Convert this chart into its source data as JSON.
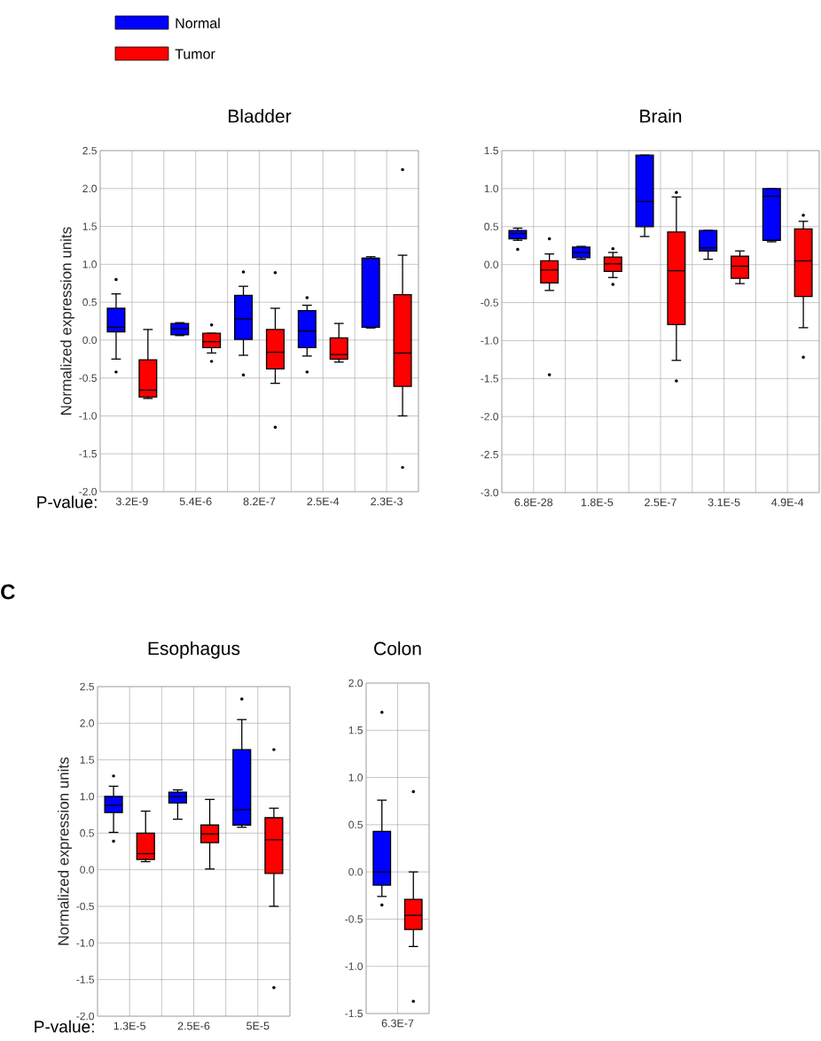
{
  "chart_data": [
    {
      "type": "box",
      "title": "Bladder",
      "ylabel": "Normalized expression units",
      "xlabel": "P-value:",
      "categories": [
        "3.2E-9",
        "5.4E-6",
        "8.2E-7",
        "2.5E-4",
        "2.3E-3"
      ],
      "ylim": [
        -2,
        2.5
      ],
      "yticks": [
        {
          "value": -2,
          "label": "-2.0"
        },
        {
          "value": -1.5,
          "label": "-1.5"
        },
        {
          "value": -1,
          "label": "-1.0"
        },
        {
          "value": -0.5,
          "label": "-0.5"
        },
        {
          "value": 0,
          "label": "0.0"
        },
        {
          "value": 0.5,
          "label": "0.5"
        },
        {
          "value": 1,
          "label": "1.0"
        },
        {
          "value": 1.5,
          "label": "1.5"
        },
        {
          "value": 2,
          "label": "2.0"
        },
        {
          "value": 2.5,
          "label": "2.5"
        }
      ],
      "grid": true,
      "legend": "top left",
      "series": [
        {
          "name": "Normal",
          "color": "#0000ff",
          "boxes": [
            {
              "low": -0.25,
              "q1": 0.11,
              "median": 0.17,
              "q3": 0.42,
              "high": 0.61,
              "outliers": [
                0.8,
                -0.42
              ]
            },
            {
              "low": 0.06,
              "q1": 0.07,
              "median": 0.15,
              "q3": 0.22,
              "high": 0.23
            },
            {
              "low": -0.2,
              "q1": 0.01,
              "median": 0.28,
              "q3": 0.59,
              "high": 0.71,
              "outliers": [
                0.9,
                -0.46
              ]
            },
            {
              "low": -0.21,
              "q1": -0.1,
              "median": 0.12,
              "q3": 0.39,
              "high": 0.46,
              "outliers": [
                0.56,
                -0.42
              ]
            },
            {
              "low": 0.16,
              "q1": 0.17,
              "median": 1.08,
              "q3": 1.08,
              "high": 1.1
            }
          ]
        },
        {
          "name": "Tumor",
          "color": "#ff0000",
          "boxes": [
            {
              "low": -0.77,
              "q1": -0.75,
              "median": -0.66,
              "q3": -0.26,
              "high": 0.14
            },
            {
              "low": -0.17,
              "q1": -0.1,
              "median": -0.02,
              "q3": 0.09,
              "high": 0.09,
              "outliers": [
                0.2,
                -0.28
              ]
            },
            {
              "low": -0.57,
              "q1": -0.38,
              "median": -0.16,
              "q3": 0.14,
              "high": 0.42,
              "outliers": [
                0.89,
                -1.15
              ]
            },
            {
              "low": -0.29,
              "q1": -0.25,
              "median": -0.19,
              "q3": 0.03,
              "high": 0.22
            },
            {
              "low": -1.0,
              "q1": -0.61,
              "median": -0.17,
              "q3": 0.6,
              "high": 1.12,
              "outliers": [
                2.25,
                -1.68
              ]
            }
          ]
        }
      ]
    },
    {
      "type": "box",
      "title": "Brain",
      "categories": [
        "6.8E-28",
        "1.8E-5",
        "2.5E-7",
        "3.1E-5",
        "4.9E-4"
      ],
      "ylim": [
        -3,
        1.5
      ],
      "yticks": [
        {
          "value": -3,
          "label": "-3.0"
        },
        {
          "value": -2.5,
          "label": "-2.5"
        },
        {
          "value": -2,
          "label": "-2.0"
        },
        {
          "value": -1.5,
          "label": "-1.5"
        },
        {
          "value": -1,
          "label": "-1.0"
        },
        {
          "value": -0.5,
          "label": "-0.5"
        },
        {
          "value": 0,
          "label": "0.0"
        },
        {
          "value": 0.5,
          "label": "0.5"
        },
        {
          "value": 1,
          "label": "1.0"
        },
        {
          "value": 1.5,
          "label": "1.5"
        }
      ],
      "grid": true,
      "series": [
        {
          "color": "#0000ff",
          "boxes": [
            {
              "low": 0.32,
              "q1": 0.34,
              "median": 0.41,
              "q3": 0.45,
              "high": 0.48,
              "outliers": [
                0.2
              ]
            },
            {
              "low": 0.07,
              "q1": 0.09,
              "median": 0.16,
              "q3": 0.23,
              "high": 0.24
            },
            {
              "low": 0.37,
              "q1": 0.5,
              "median": 0.83,
              "q3": 1.44,
              "high": 1.44
            },
            {
              "low": 0.07,
              "q1": 0.18,
              "median": 0.22,
              "q3": 0.45,
              "high": 0.45
            },
            {
              "low": 0.3,
              "q1": 0.32,
              "median": 0.9,
              "q3": 1.0,
              "high": 1.0
            }
          ]
        },
        {
          "color": "#ff0000",
          "boxes": [
            {
              "low": -0.34,
              "q1": -0.24,
              "median": -0.07,
              "q3": 0.05,
              "high": 0.14,
              "outliers": [
                0.34,
                -1.45
              ]
            },
            {
              "low": -0.17,
              "q1": -0.09,
              "median": 0.01,
              "q3": 0.1,
              "high": 0.16,
              "outliers": [
                0.21,
                -0.26
              ]
            },
            {
              "low": -1.26,
              "q1": -0.79,
              "median": -0.08,
              "q3": 0.43,
              "high": 0.89,
              "outliers": [
                0.95,
                -1.53
              ]
            },
            {
              "low": -0.25,
              "q1": -0.18,
              "median": -0.02,
              "q3": 0.11,
              "high": 0.18
            },
            {
              "low": -0.83,
              "q1": -0.42,
              "median": 0.05,
              "q3": 0.47,
              "high": 0.57,
              "outliers": [
                0.65,
                -1.22
              ]
            }
          ]
        }
      ]
    },
    {
      "type": "box",
      "title": "Esophagus",
      "ylabel": "Normalized expression units",
      "xlabel": "P-value:",
      "categories": [
        "1.3E-5",
        "2.5E-6",
        "5E-5"
      ],
      "ylim": [
        -2,
        2.5
      ],
      "yticks": [
        {
          "value": -2,
          "label": "-2.0"
        },
        {
          "value": -1.5,
          "label": "-1.5"
        },
        {
          "value": -1,
          "label": "-1.0"
        },
        {
          "value": -0.5,
          "label": "-0.5"
        },
        {
          "value": 0,
          "label": "0.0"
        },
        {
          "value": 0.5,
          "label": "0.5"
        },
        {
          "value": 1,
          "label": "1.0"
        },
        {
          "value": 1.5,
          "label": "1.5"
        },
        {
          "value": 2,
          "label": "2.0"
        },
        {
          "value": 2.5,
          "label": "2.5"
        }
      ],
      "grid": true,
      "annotations": [
        "C"
      ],
      "series": [
        {
          "color": "#0000ff",
          "boxes": [
            {
              "low": 0.51,
              "q1": 0.78,
              "median": 0.88,
              "q3": 1.0,
              "high": 1.14,
              "outliers": [
                1.28,
                0.39
              ]
            },
            {
              "low": 0.69,
              "q1": 0.91,
              "median": 1.0,
              "q3": 1.06,
              "high": 1.09
            },
            {
              "low": 0.58,
              "q1": 0.61,
              "median": 0.82,
              "q3": 1.64,
              "high": 2.05,
              "outliers": [
                2.33
              ]
            }
          ]
        },
        {
          "color": "#ff0000",
          "boxes": [
            {
              "low": 0.11,
              "q1": 0.14,
              "median": 0.22,
              "q3": 0.5,
              "high": 0.8
            },
            {
              "low": 0.01,
              "q1": 0.37,
              "median": 0.49,
              "q3": 0.61,
              "high": 0.96
            },
            {
              "low": -0.5,
              "q1": -0.05,
              "median": 0.41,
              "q3": 0.71,
              "high": 0.84,
              "outliers": [
                1.64,
                -1.61
              ]
            }
          ]
        }
      ]
    },
    {
      "type": "box",
      "title": "Colon",
      "categories": [
        "6.3E-7"
      ],
      "ylim": [
        -1.5,
        2
      ],
      "yticks": [
        {
          "value": -1.5,
          "label": "-1.5"
        },
        {
          "value": -1,
          "label": "-1.0"
        },
        {
          "value": -0.5,
          "label": "-0.5"
        },
        {
          "value": 0,
          "label": "0.0"
        },
        {
          "value": 0.5,
          "label": "0.5"
        },
        {
          "value": 1,
          "label": "1.0"
        },
        {
          "value": 1.5,
          "label": "1.5"
        },
        {
          "value": 2,
          "label": "2.0"
        }
      ],
      "grid": true,
      "series": [
        {
          "color": "#0000ff",
          "boxes": [
            {
              "low": -0.26,
              "q1": -0.14,
              "median": 0.0,
              "q3": 0.43,
              "high": 0.76,
              "outliers": [
                1.69,
                -0.35
              ]
            }
          ]
        },
        {
          "color": "#ff0000",
          "boxes": [
            {
              "low": -0.79,
              "q1": -0.61,
              "median": -0.46,
              "q3": -0.29,
              "high": 0.0,
              "outliers": [
                0.85,
                -1.37
              ]
            }
          ]
        }
      ]
    }
  ]
}
